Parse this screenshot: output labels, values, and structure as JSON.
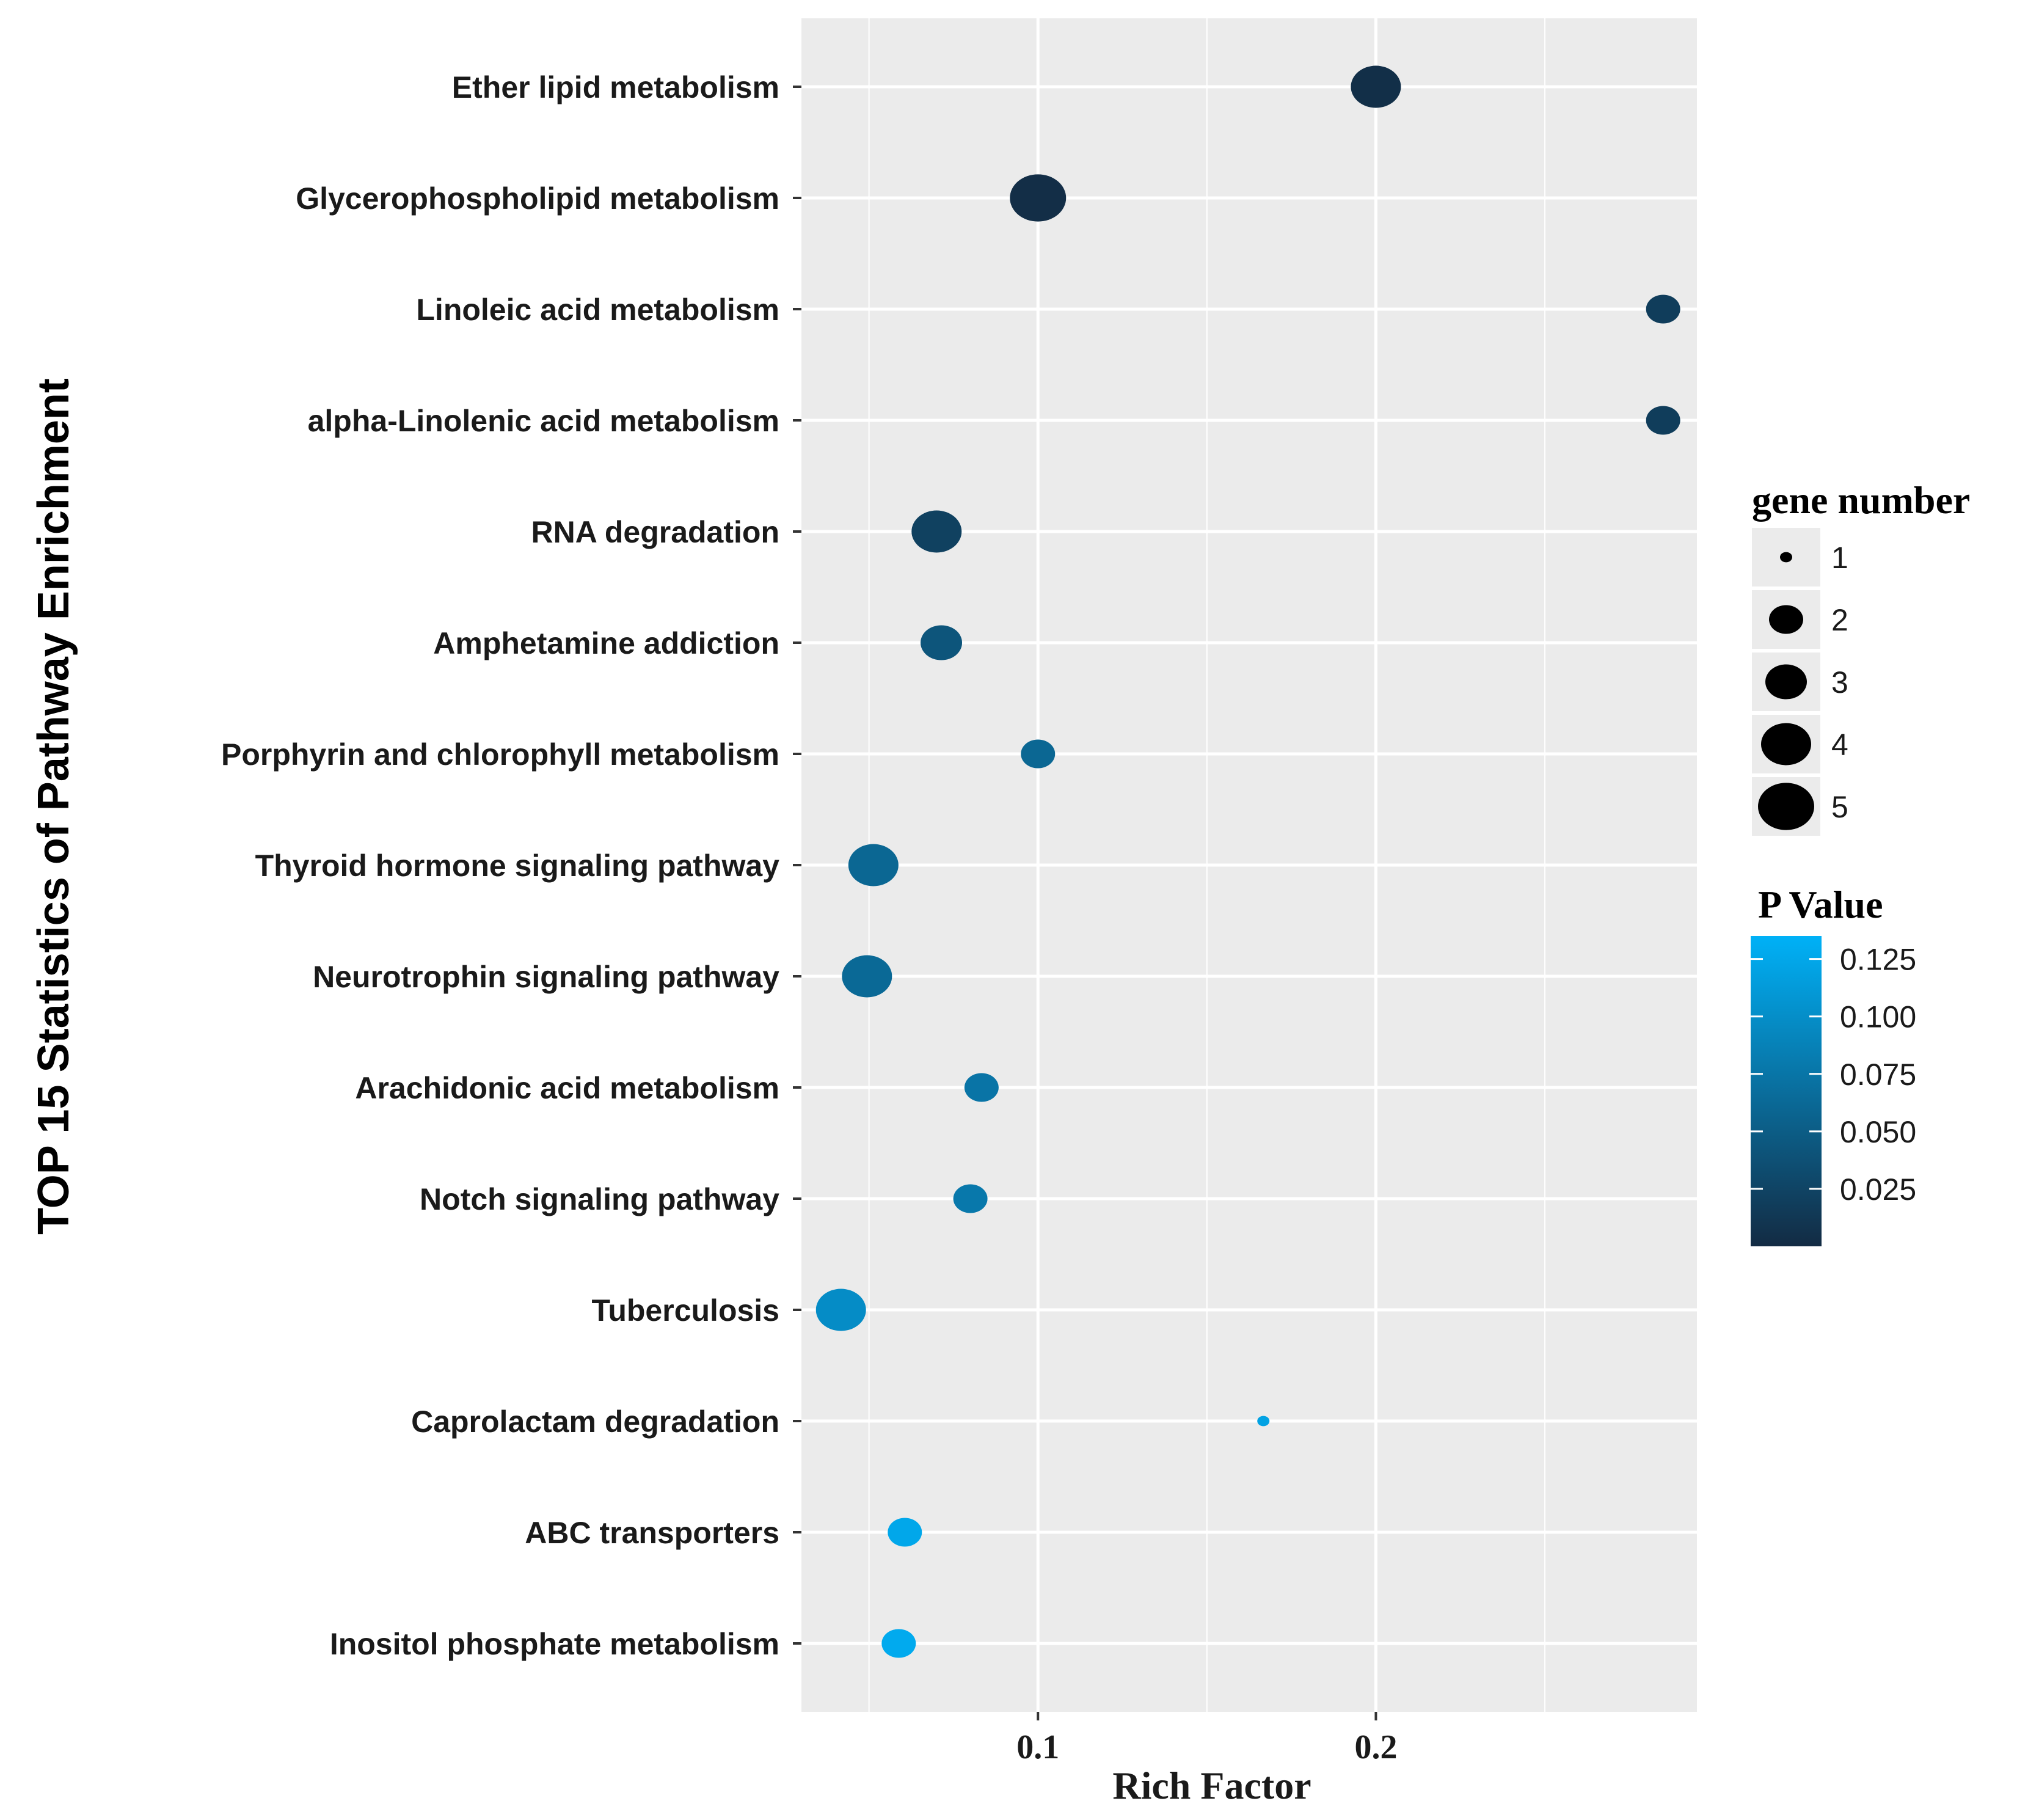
{
  "chart_data": {
    "type": "scatter",
    "xlabel": "Rich Factor",
    "ylabel": "TOP 15 Statistics of Pathway Enrichment",
    "xlim": [
      0.03,
      0.295
    ],
    "x_ticks": [
      0.1,
      0.2
    ],
    "x_tick_labels": [
      "0.1",
      "0.2"
    ],
    "x_minor_gridlines": [
      0.05,
      0.15,
      0.25
    ],
    "grid": true,
    "categories": [
      "Ether lipid metabolism",
      "Glycerophospholipid metabolism",
      "Linoleic acid metabolism",
      "alpha-Linolenic acid metabolism",
      "RNA degradation",
      "Amphetamine addiction",
      "Porphyrin and chlorophyll metabolism",
      "Thyroid hormone signaling pathway",
      "Neurotrophin signaling pathway",
      "Arachidonic acid metabolism",
      "Notch signaling pathway",
      "Tuberculosis",
      "Caprolactam degradation",
      "ABC transporters",
      "Inositol phosphate metabolism"
    ],
    "rich_factor": [
      0.2,
      0.1,
      0.285,
      0.285,
      0.07,
      0.0714,
      0.1,
      0.0513,
      0.0494,
      0.0833,
      0.08,
      0.0417,
      0.1667,
      0.0606,
      0.0588
    ],
    "gene_number": [
      4,
      5,
      2,
      2,
      4,
      3,
      2,
      4,
      4,
      2,
      2,
      4,
      1,
      2,
      2
    ],
    "p_value": [
      0.004,
      0.003,
      0.018,
      0.018,
      0.022,
      0.042,
      0.06,
      0.06,
      0.062,
      0.074,
      0.078,
      0.098,
      0.12,
      0.125,
      0.128
    ],
    "size_legend": {
      "title": "gene number",
      "values": [
        1,
        2,
        3,
        4,
        5
      ],
      "labels": [
        "1",
        "2",
        "3",
        "4",
        "5"
      ]
    },
    "color_legend": {
      "title": "P Value",
      "min": 0.0,
      "max": 0.135,
      "ticks": [
        0.125,
        0.1,
        0.075,
        0.05,
        0.025
      ],
      "tick_labels": [
        "0.125",
        "0.100",
        "0.075",
        "0.050",
        "0.025"
      ],
      "low_color": "#132b43",
      "high_color": "#00b1f7"
    },
    "legend_placement": "right",
    "panel_background": "#ebebeb",
    "grid_color": "#ffffff"
  }
}
